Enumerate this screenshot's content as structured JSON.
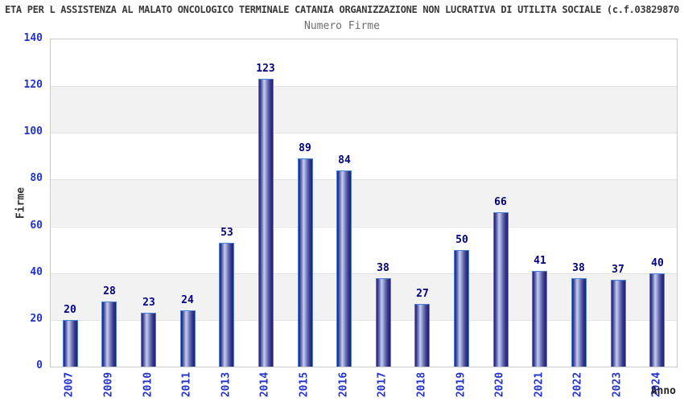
{
  "page": {
    "title": "ETA PER L ASSISTENZA AL MALATO ONCOLOGICO TERMINALE CATANIA ORGANIZZAZIONE NON LUCRATIVA DI UTILITA SOCIALE (c.f.03829870",
    "subtitle": "Numero Firme"
  },
  "chart_data": {
    "type": "bar",
    "title": "Numero Firme",
    "categories": [
      "2007",
      "2009",
      "2010",
      "2011",
      "2013",
      "2014",
      "2015",
      "2016",
      "2017",
      "2018",
      "2019",
      "2020",
      "2021",
      "2022",
      "2023",
      "2024"
    ],
    "values": [
      20,
      28,
      23,
      24,
      53,
      123,
      89,
      84,
      38,
      27,
      50,
      66,
      41,
      38,
      37,
      40
    ],
    "xlabel": "Anno",
    "ylabel": "Firme",
    "ylim": [
      0,
      140
    ],
    "yticks": [
      0,
      20,
      40,
      60,
      80,
      100,
      120,
      140
    ],
    "grid": "horizontal alternating bands every 20 units",
    "legend_position": "none",
    "value_labels": "above each bar"
  },
  "colors": {
    "title_text": "#3a3a3a",
    "subtitle_text": "#6e6e6e",
    "axis_tick_text": "#2233cc",
    "value_label_text": "#000080",
    "axis_title_text": "#333333",
    "plot_border": "#c9c9c9",
    "band_gray": "#f2f2f2",
    "band_white": "#ffffff",
    "gridline": "#e2e2e2",
    "bar_outline": "#4a82d4",
    "bar_dark": "#23237d",
    "bar_light": "#c6cde9"
  }
}
